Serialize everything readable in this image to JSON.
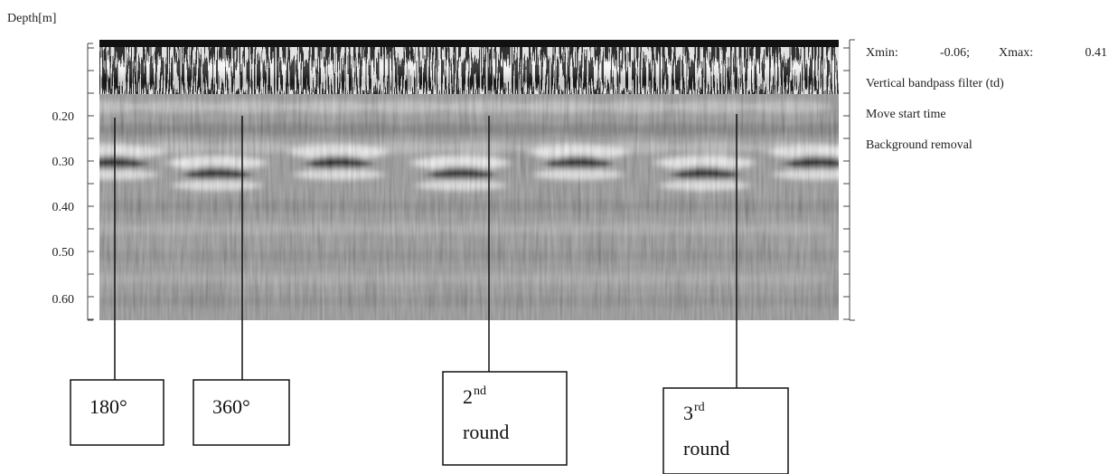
{
  "axis": {
    "label": "Depth[m]",
    "ticks": [
      "0.20",
      "0.30",
      "0.40",
      "0.50",
      "0.60"
    ]
  },
  "info": {
    "xmin_label": "Xmin:",
    "xmin": "-0.06;",
    "xmax_label": "Xmax:",
    "xmax": "0.41",
    "items": [
      "Vertical bandpass filter (td)",
      "Move start time",
      "Background removal"
    ]
  },
  "callouts": [
    {
      "label": "180°"
    },
    {
      "label": "360°"
    },
    {
      "number": "2",
      "suffix": "nd",
      "text": "round"
    },
    {
      "number": "3",
      "suffix": "rd",
      "text": "round"
    }
  ]
}
